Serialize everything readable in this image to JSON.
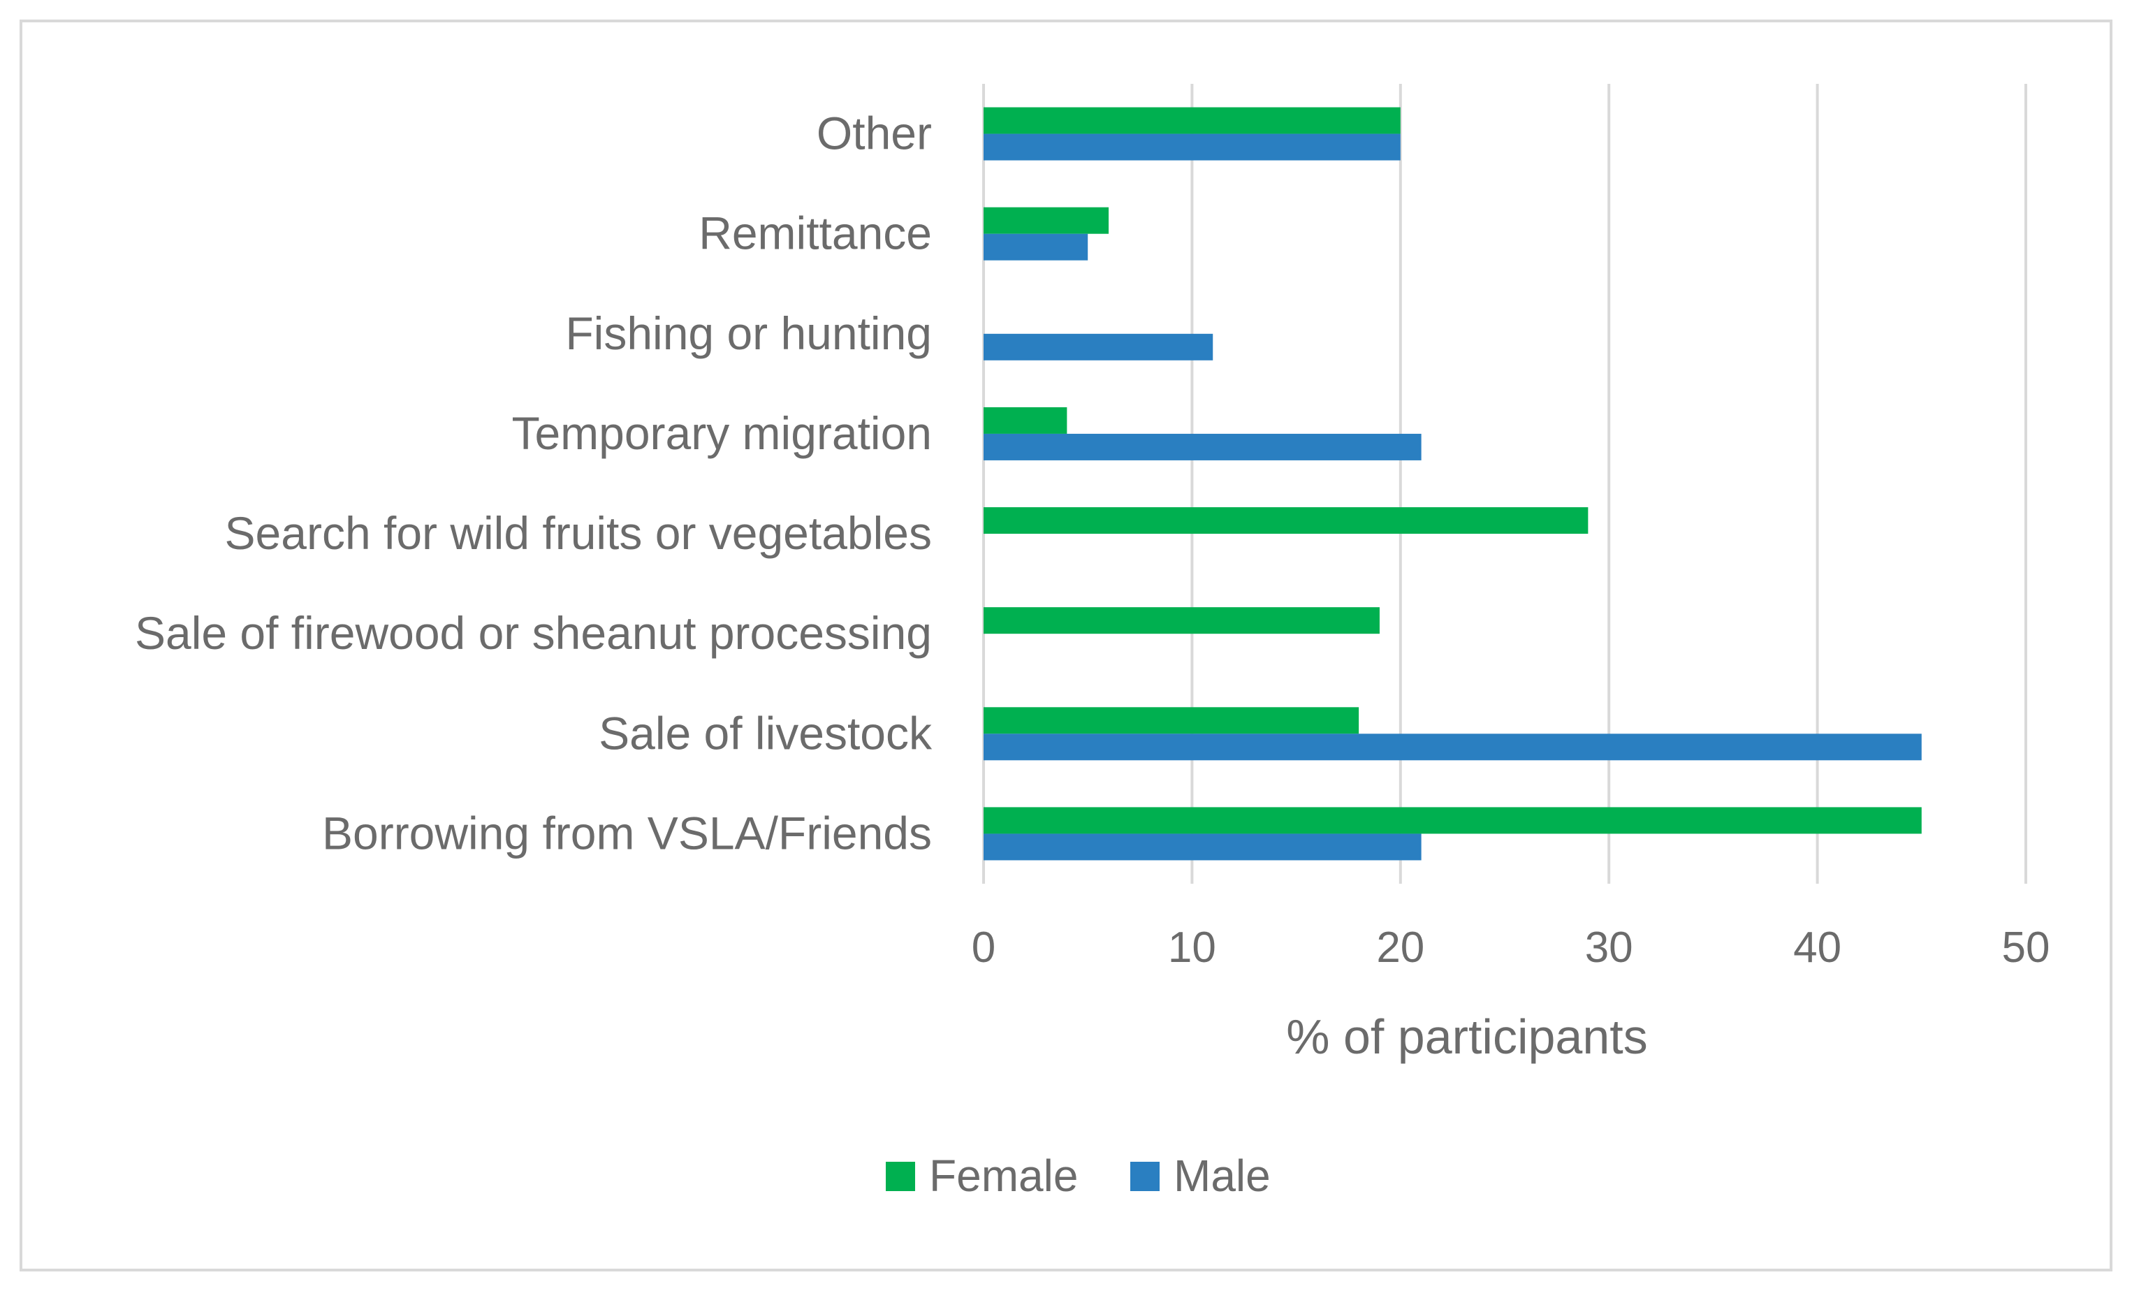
{
  "chart_data": {
    "type": "bar",
    "orientation": "horizontal",
    "categories": [
      "Other",
      "Remittance",
      "Fishing or hunting",
      "Temporary migration",
      "Search for wild fruits or vegetables",
      "Sale of firewood or sheanut processing",
      "Sale of livestock",
      "Borrowing from VSLA/Friends"
    ],
    "series": [
      {
        "name": "Female",
        "color": "#00b050",
        "values": [
          20,
          6,
          null,
          4,
          29,
          19,
          18,
          45
        ]
      },
      {
        "name": "Male",
        "color": "#2a7fc1",
        "values": [
          20,
          5,
          11,
          21,
          null,
          null,
          45,
          21
        ]
      }
    ],
    "title": "",
    "xlabel": "% of participants",
    "ylabel": "",
    "xlim": [
      0,
      50
    ],
    "xticks": [
      0,
      10,
      20,
      30,
      40,
      50
    ],
    "grid": "vertical",
    "legend": "bottom-center"
  },
  "colors": {
    "gridline": "#d9d9d9",
    "axis": "#d9d9d9",
    "frame": "#d9d9d9",
    "text": "#6b6b6b"
  }
}
